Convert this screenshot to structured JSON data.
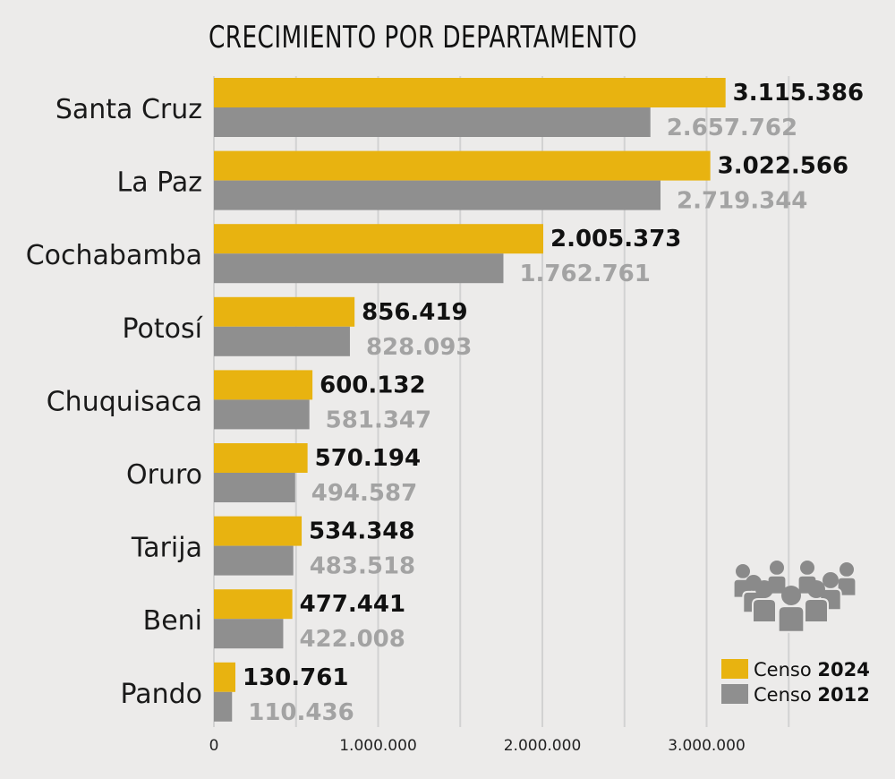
{
  "chart_data": {
    "type": "bar",
    "orientation": "horizontal",
    "title": "CRECIMIENTO POR DEPARTAMENTO",
    "categories": [
      "Santa Cruz",
      "La Paz",
      "Cochabamba",
      "Potosí",
      "Chuquisaca",
      "Oruro",
      "Tarija",
      "Beni",
      "Pando"
    ],
    "series": [
      {
        "name": "Censo 2024",
        "legend_prefix": "Censo ",
        "legend_year": "2024",
        "color": "#e8b310",
        "values": [
          3115386,
          3022566,
          2005373,
          856419,
          600132,
          570194,
          534348,
          477441,
          130761
        ],
        "labels": [
          "3.115.386",
          "3.022.566",
          "2.005.373",
          "856.419",
          "600.132",
          "570.194",
          "534.348",
          "477.441",
          "130.761"
        ]
      },
      {
        "name": "Censo 2012",
        "legend_prefix": "Censo ",
        "legend_year": "2012",
        "color": "#8f8f8f",
        "values": [
          2657762,
          2719344,
          1762761,
          828093,
          581347,
          494587,
          483518,
          422008,
          110436
        ],
        "labels": [
          "2.657.762",
          "2.719.344",
          "1.762.761",
          "828.093",
          "581.347",
          "494.587",
          "483.518",
          "422.008",
          "110.436"
        ]
      }
    ],
    "xlim": [
      0,
      3800000
    ],
    "xticks": [
      0,
      1000000,
      2000000,
      3000000
    ],
    "xtick_labels": [
      "0",
      "1.000.000",
      "2.000.000",
      "3.000.000"
    ],
    "grid": "vertical every 500.000",
    "legend_placement": "bottom-right",
    "icon": "people-group-icon"
  }
}
